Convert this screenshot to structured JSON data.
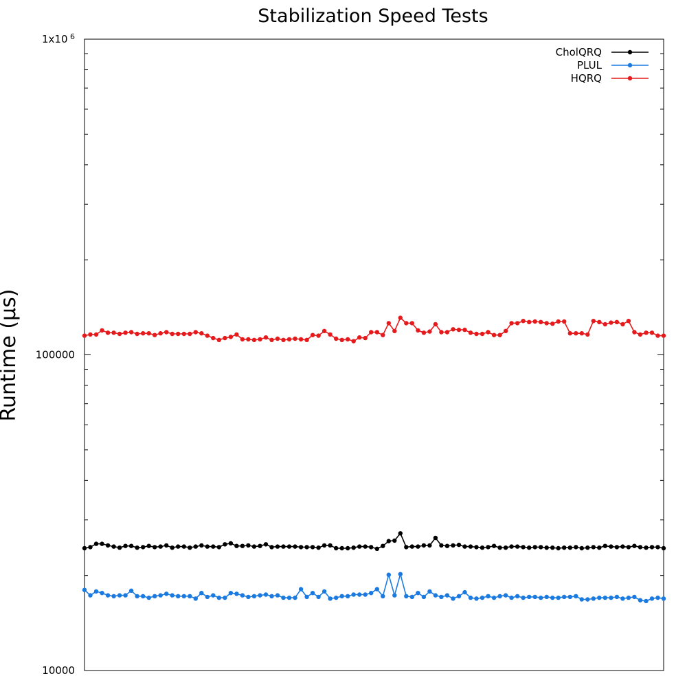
{
  "chart_data": {
    "type": "line",
    "title": "Stabilization Speed Tests",
    "xlabel": "",
    "ylabel": "Runtime (µs)",
    "yscale": "log",
    "ylim": [
      10000,
      1000000
    ],
    "xlim": [
      1,
      100
    ],
    "grid": false,
    "legend_position": "top-right",
    "y_tick_labels": [
      {
        "value": 10000,
        "label": "10000"
      },
      {
        "value": 100000,
        "label": "100000"
      },
      {
        "value": 1000000,
        "label": "1x10",
        "sup": "6"
      }
    ],
    "x": [
      1,
      2,
      3,
      4,
      5,
      6,
      7,
      8,
      9,
      10,
      11,
      12,
      13,
      14,
      15,
      16,
      17,
      18,
      19,
      20,
      21,
      22,
      23,
      24,
      25,
      26,
      27,
      28,
      29,
      30,
      31,
      32,
      33,
      34,
      35,
      36,
      37,
      38,
      39,
      40,
      41,
      42,
      43,
      44,
      45,
      46,
      47,
      48,
      49,
      50,
      51,
      52,
      53,
      54,
      55,
      56,
      57,
      58,
      59,
      60,
      61,
      62,
      63,
      64,
      65,
      66,
      67,
      68,
      69,
      70,
      71,
      72,
      73,
      74,
      75,
      76,
      77,
      78,
      79,
      80,
      81,
      82,
      83,
      84,
      85,
      86,
      87,
      88,
      89,
      90,
      91,
      92,
      93,
      94,
      95,
      96,
      97,
      98,
      99,
      100
    ],
    "series": [
      {
        "name": "CholQRQ",
        "color": "#000000",
        "values": [
          24400,
          24600,
          25200,
          25200,
          24900,
          24700,
          24500,
          24800,
          24800,
          24500,
          24600,
          24800,
          24600,
          24700,
          24900,
          24500,
          24700,
          24700,
          24500,
          24700,
          24900,
          24700,
          24700,
          24600,
          25100,
          25300,
          24800,
          24800,
          24900,
          24700,
          24800,
          25100,
          24600,
          24700,
          24700,
          24700,
          24700,
          24600,
          24600,
          24600,
          24500,
          24900,
          24900,
          24400,
          24400,
          24400,
          24500,
          24700,
          24700,
          24600,
          24300,
          24800,
          25700,
          25800,
          27200,
          24600,
          24700,
          24700,
          24900,
          24900,
          26300,
          24900,
          24800,
          24900,
          25000,
          24700,
          24700,
          24600,
          24500,
          24600,
          24800,
          24500,
          24500,
          24700,
          24700,
          24600,
          24500,
          24600,
          24600,
          24500,
          24500,
          24400,
          24500,
          24500,
          24600,
          24400,
          24500,
          24600,
          24500,
          24800,
          24700,
          24600,
          24700,
          24600,
          24800,
          24600,
          24500,
          24600,
          24600,
          24400
        ]
      },
      {
        "name": "PLUL",
        "color": "#1a7ae0",
        "values": [
          18000,
          17300,
          17800,
          17600,
          17300,
          17200,
          17300,
          17300,
          17900,
          17200,
          17200,
          17000,
          17200,
          17300,
          17500,
          17300,
          17200,
          17200,
          17200,
          16900,
          17600,
          17100,
          17300,
          17000,
          17000,
          17600,
          17500,
          17300,
          17100,
          17200,
          17300,
          17400,
          17200,
          17300,
          17000,
          17000,
          17000,
          18100,
          17100,
          17600,
          17100,
          17800,
          16900,
          17000,
          17200,
          17200,
          17400,
          17400,
          17400,
          17600,
          18100,
          17200,
          20100,
          17300,
          20200,
          17200,
          17100,
          17600,
          17100,
          17800,
          17300,
          17100,
          17300,
          16900,
          17200,
          17700,
          17000,
          16900,
          17000,
          17200,
          17000,
          17200,
          17300,
          17000,
          17200,
          17000,
          17100,
          17100,
          17000,
          17100,
          17000,
          17000,
          17100,
          17100,
          17200,
          16800,
          16800,
          16900,
          17000,
          17000,
          17000,
          17100,
          16900,
          17000,
          17100,
          16700,
          16600,
          16900,
          17000,
          16900
        ]
      },
      {
        "name": "HQRQ",
        "color": "#e41a1c",
        "values": [
          115000,
          116000,
          116000,
          119500,
          117500,
          117500,
          116500,
          117500,
          118000,
          116500,
          117000,
          117000,
          115500,
          117000,
          118000,
          116500,
          116500,
          116500,
          116500,
          118000,
          117000,
          115000,
          113000,
          111500,
          113000,
          114000,
          116000,
          112000,
          112000,
          111500,
          112000,
          113500,
          111500,
          112500,
          111500,
          112000,
          112500,
          112000,
          111500,
          115500,
          115000,
          119000,
          116000,
          112500,
          111500,
          112000,
          110500,
          113500,
          113000,
          118000,
          118000,
          115500,
          126000,
          119000,
          131000,
          126000,
          126000,
          119500,
          117500,
          118500,
          125000,
          118000,
          118000,
          120500,
          120000,
          120000,
          117500,
          116500,
          116500,
          118000,
          115500,
          115500,
          119000,
          126000,
          126000,
          128000,
          127000,
          127500,
          127000,
          126000,
          125500,
          127500,
          127500,
          117000,
          117000,
          117000,
          116000,
          128000,
          127000,
          125000,
          126500,
          127000,
          125000,
          128000,
          118000,
          116000,
          117500,
          117500,
          115000,
          115000
        ]
      }
    ]
  }
}
